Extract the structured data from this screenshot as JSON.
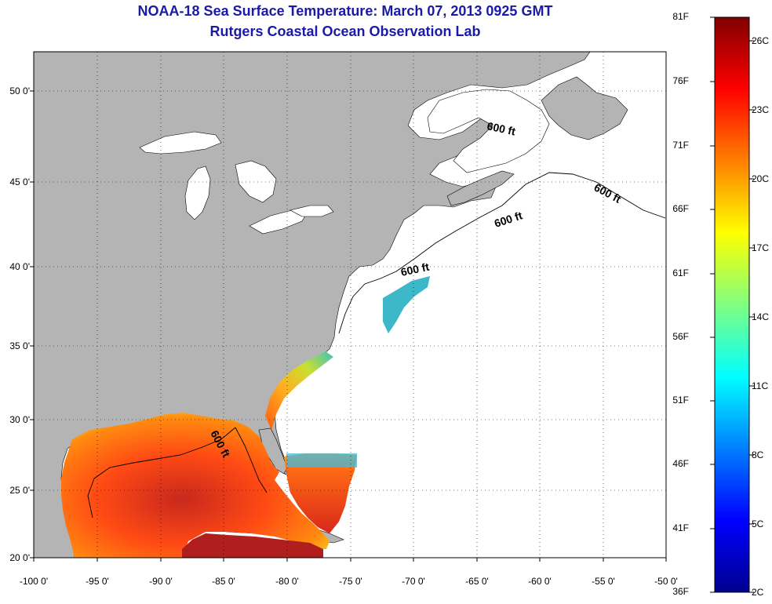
{
  "title_line1": "NOAA-18 Sea Surface Temperature:  March 07, 2013 0925 GMT",
  "title_line2": "Rutgers Coastal Ocean Observation Lab",
  "y_ticks": [
    "50 0'",
    "45 0'",
    "40 0'",
    "35 0'",
    "30 0'",
    "25 0'",
    "20 0'"
  ],
  "x_ticks": [
    "-100 0'",
    "-95 0'",
    "-90 0'",
    "-85 0'",
    "-80 0'",
    "-75 0'",
    "-70 0'",
    "-65 0'",
    "-60 0'",
    "-55 0'",
    "-50 0'"
  ],
  "contour_labels": [
    "600 ft",
    "600 ft",
    "600 ft",
    "600 ft",
    "600 ft"
  ],
  "colorbar": {
    "fahrenheit_labels": [
      "81F",
      "76F",
      "71F",
      "66F",
      "61F",
      "56F",
      "51F",
      "46F",
      "41F",
      "36F"
    ],
    "celsius_labels": [
      "26C",
      "23C",
      "20C",
      "17C",
      "14C",
      "11C",
      "8C",
      "5C",
      "2C"
    ],
    "colormap": "jet"
  },
  "colors": {
    "land": "#b4b4b4",
    "ocean": "#ffffff",
    "title": "#1a1aa6",
    "grid": "#000000"
  }
}
